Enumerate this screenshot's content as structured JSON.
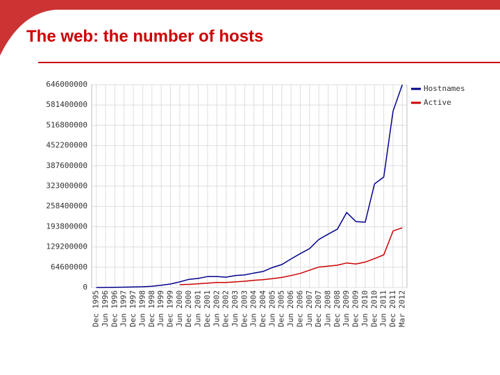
{
  "title": "The web:  the number of hosts",
  "chart_data": {
    "type": "line",
    "categories": [
      "Dec 1995",
      "Jun 1996",
      "Dec 1996",
      "Jun 1997",
      "Dec 1997",
      "Jun 1998",
      "Dec 1998",
      "Jun 1999",
      "Dec 1999",
      "Jun 2000",
      "Dec 2000",
      "Jun 2001",
      "Dec 2001",
      "Jun 2002",
      "Dec 2002",
      "Jun 2003",
      "Dec 2003",
      "Jun 2004",
      "Dec 2004",
      "Jun 2005",
      "Dec 2005",
      "Jun 2006",
      "Dec 2006",
      "Jun 2007",
      "Dec 2007",
      "Jun 2008",
      "Dec 2008",
      "Jun 2009",
      "Dec 2009",
      "Jun 2010",
      "Dec 2010",
      "Jun 2011",
      "Dec 2011",
      "Mar 2012"
    ],
    "series": [
      {
        "name": "Hostnames",
        "color": "#00008b",
        "values": [
          100000,
          300000,
          600000,
          1200000,
          1700000,
          2400000,
          4000000,
          7000000,
          11000000,
          18000000,
          26000000,
          29000000,
          35000000,
          35000000,
          33000000,
          38000000,
          40000000,
          46000000,
          51000000,
          64000000,
          73000000,
          91000000,
          108000000,
          124000000,
          153000000,
          170000000,
          186000000,
          239000000,
          210000000,
          208000000,
          330000000,
          352000000,
          562000000,
          646000000
        ]
      },
      {
        "name": "Active",
        "color": "#cc0000",
        "values": [
          null,
          null,
          null,
          null,
          null,
          null,
          null,
          null,
          null,
          9000000,
          10000000,
          12000000,
          14000000,
          16000000,
          16000000,
          18000000,
          20000000,
          23000000,
          25000000,
          28000000,
          32000000,
          38000000,
          45000000,
          55000000,
          65000000,
          68000000,
          71000000,
          78000000,
          75000000,
          81000000,
          92000000,
          104000000,
          180000000,
          190000000
        ]
      }
    ],
    "ylim": [
      0,
      646000000
    ],
    "yticks": [
      0,
      64600000,
      129200000,
      193800000,
      258400000,
      323000000,
      387600000,
      452200000,
      516800000,
      581400000,
      646000000
    ],
    "grid": true,
    "legend": "top-right"
  }
}
